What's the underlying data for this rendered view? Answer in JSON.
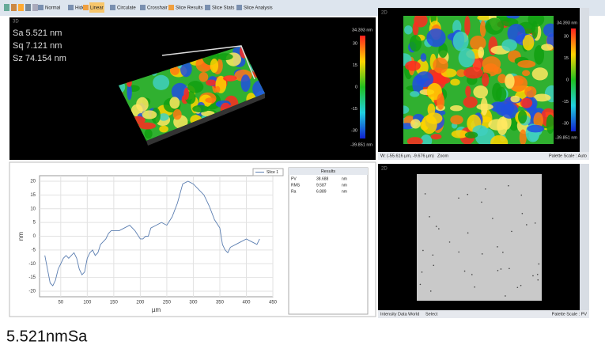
{
  "toolbar": {
    "buttons": [
      "Normal",
      "Hide",
      "Linear",
      "Circulate",
      "Crosshair",
      "Slice Results",
      "Slice Stats",
      "Slice Analysis"
    ]
  },
  "surface_view": {
    "stats": [
      "Sa 5.521  nm",
      "Sq 7.121  nm",
      "Sz 74.154 nm"
    ],
    "scale": {
      "max": "34.393 nm",
      "ticks": [
        "30",
        "15",
        "0",
        "-15",
        "-30"
      ],
      "min": "-39.851 nm"
    }
  },
  "heatmap_view": {
    "scale": {
      "max": "34.393 nm",
      "ticks": [
        "30",
        "15",
        "0",
        "-15",
        "-30"
      ],
      "min": "-39.851 nm"
    },
    "status_left": "W: (-55.616 µm, -9.676 µm)",
    "status_zoom": "Zoom",
    "status_right": "Palette Scale : Auto"
  },
  "intensity_view": {
    "status_left": [
      "Intensity Data",
      "World",
      "Select"
    ],
    "status_right": "Palette Scale : PV"
  },
  "results": {
    "title": "Results",
    "rows": [
      [
        "PV",
        "38.688",
        "nm"
      ],
      [
        "RMS",
        "9.587",
        "nm"
      ],
      [
        "Ra",
        "6.889",
        "nm"
      ]
    ]
  },
  "chart_data": {
    "type": "line",
    "xlabel": "µm",
    "ylabel": "nm",
    "x": [
      20,
      25,
      30,
      35,
      40,
      45,
      50,
      55,
      60,
      65,
      70,
      75,
      80,
      85,
      90,
      95,
      100,
      105,
      110,
      115,
      120,
      125,
      130,
      135,
      140,
      145,
      150,
      160,
      170,
      180,
      190,
      200,
      205,
      210,
      215,
      220,
      230,
      240,
      250,
      260,
      270,
      280,
      290,
      300,
      310,
      320,
      330,
      340,
      350,
      355,
      360,
      365,
      370,
      380,
      390,
      400,
      410,
      420,
      425
    ],
    "series": [
      {
        "name": "Slice 1",
        "color": "#5a7db0",
        "values": [
          -7,
          -12,
          -17,
          -18,
          -16,
          -12,
          -10,
          -8,
          -7,
          -8,
          -7,
          -6,
          -8,
          -12,
          -14,
          -13,
          -8,
          -6,
          -5,
          -7,
          -6,
          -3,
          -2,
          -1,
          1,
          2,
          2,
          2,
          3,
          4,
          2,
          -1,
          -1,
          0,
          0,
          3,
          4,
          5,
          4,
          7,
          12,
          19,
          20,
          19,
          17,
          15,
          11,
          6,
          3,
          -3,
          -5,
          -6,
          -4,
          -3,
          -2,
          -1,
          -2,
          -3,
          -1
        ]
      }
    ],
    "xlim": [
      10,
      450
    ],
    "xticks": [
      50,
      100,
      150,
      200,
      250,
      300,
      350,
      400,
      450
    ],
    "ylim": [
      -22,
      22
    ],
    "yticks": [
      -20,
      -15,
      -10,
      -5,
      0,
      5,
      10,
      15,
      20
    ],
    "grid": true
  },
  "caption": "5.521nmSa"
}
